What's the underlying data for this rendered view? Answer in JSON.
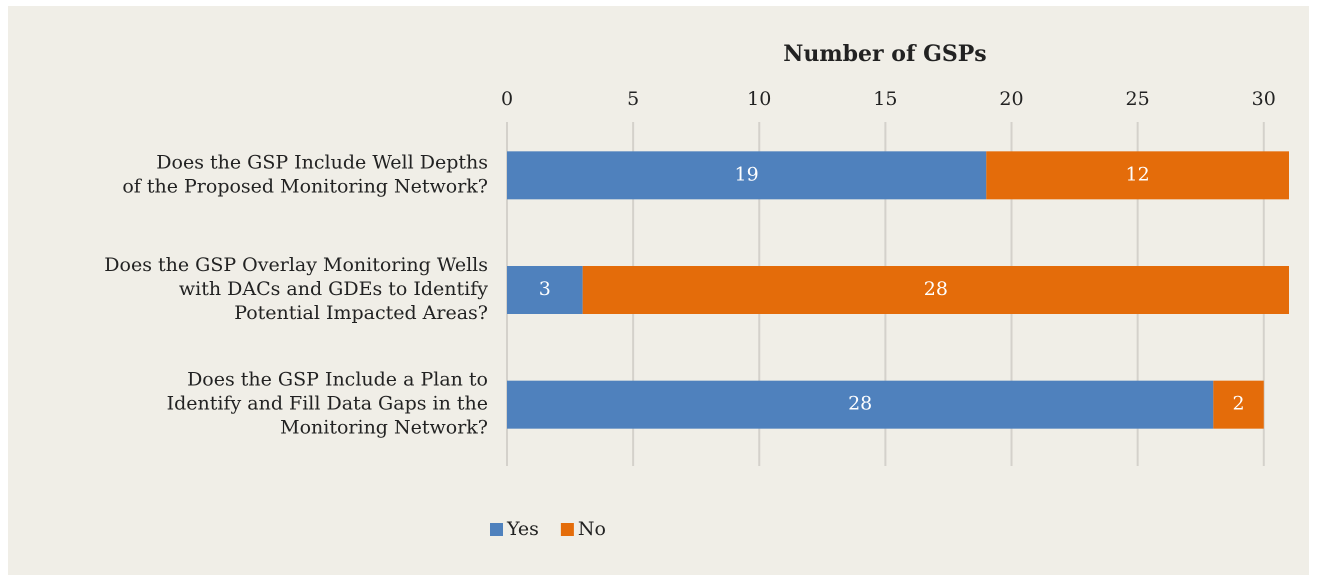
{
  "chart_data": {
    "type": "stacked-bar-horizontal",
    "title": "Number of GSPs",
    "categories": [
      [
        "Does the GSP Include Well Depths",
        "of the Proposed Monitoring Network?"
      ],
      [
        "Does the GSP Overlay Monitoring Wells",
        "with DACs and GDEs to Identify",
        "Potential Impacted Areas?"
      ],
      [
        "Does the GSP Include a Plan to",
        "Identify and Fill Data Gaps in the",
        "Monitoring Network?"
      ]
    ],
    "series": [
      {
        "name": "Yes",
        "color": "#4f81bd",
        "values": [
          19,
          3,
          28
        ]
      },
      {
        "name": "No",
        "color": "#e46c0a",
        "values": [
          12,
          28,
          2
        ]
      }
    ],
    "xlim": [
      0,
      31
    ],
    "xticks": [
      0,
      5,
      10,
      15,
      20,
      25,
      30
    ],
    "grid": true,
    "legend": "bottom"
  }
}
